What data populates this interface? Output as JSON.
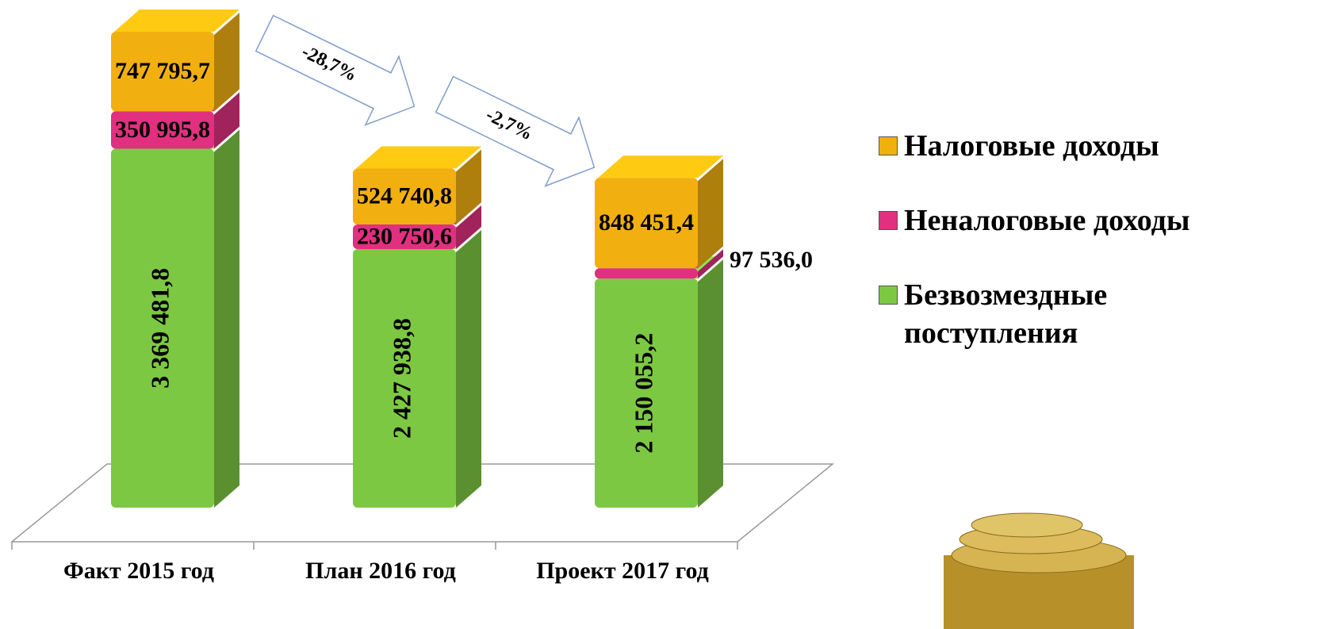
{
  "chart_data": {
    "type": "bar3d_stacked",
    "categories": [
      "Факт 2015 год",
      "План 2016 год",
      "Проект 2017 год"
    ],
    "series": [
      {
        "name": "Безвозмездные поступления",
        "color": "#7dc843",
        "values": [
          3369481.8,
          2427938.8,
          2150055.2
        ],
        "value_labels": [
          "3 369 481,8",
          "2 427 938,8",
          "2 150 055,2"
        ]
      },
      {
        "name": "Неналоговые доходы",
        "color": "#e0307f",
        "values": [
          350995.8,
          230750.6,
          97536.0
        ],
        "value_labels": [
          "350 995,8",
          "230 750,6",
          "97 536,0"
        ]
      },
      {
        "name": "Налоговые доходы",
        "color": "#f2b010",
        "values": [
          747795.7,
          524740.8,
          848451.4
        ],
        "value_labels": [
          "747 795,7",
          "524 740,8",
          "848 451,4"
        ]
      }
    ],
    "annotations": [
      "-28,7%",
      "-2,7%"
    ]
  }
}
